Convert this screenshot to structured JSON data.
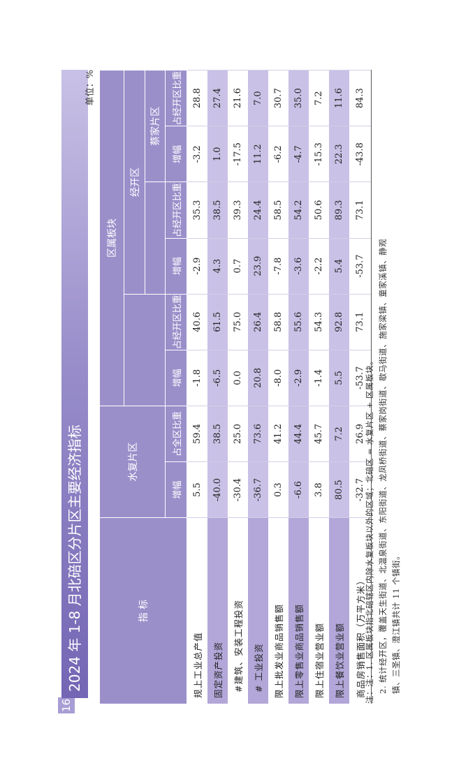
{
  "page_number": "16",
  "title": "2024 年 1-8 月北碚区分片区主要经济指标",
  "unit": "单位：%",
  "headers": {
    "indicator": "指 标",
    "shuifu": "水复片区",
    "qushu": "区属板块",
    "jingkai": "经开区",
    "caijia": "蔡家片区",
    "growth": "增幅",
    "share_district": "占全区比重",
    "share_zone": "占经开区比重"
  },
  "rows": [
    {
      "label": "规上工业总产值",
      "v": [
        "5.5",
        "59.4",
        "-1.8",
        "40.6",
        "-2.9",
        "35.3",
        "-3.2",
        "28.8"
      ]
    },
    {
      "label": "固定资产投资",
      "v": [
        "-40.0",
        "38.5",
        "-6.5",
        "61.5",
        "4.3",
        "38.5",
        "1.0",
        "27.4"
      ]
    },
    {
      "label": "#建筑、安装工程投资",
      "v": [
        "-30.4",
        "25.0",
        "0.0",
        "75.0",
        "0.7",
        "39.3",
        "-17.5",
        "21.6"
      ]
    },
    {
      "label": "# 工业投资",
      "v": [
        "-36.7",
        "73.6",
        "20.8",
        "26.4",
        "23.9",
        "24.4",
        "11.2",
        "7.0"
      ]
    },
    {
      "label": "限上批发业商品销售额",
      "v": [
        "0.3",
        "41.2",
        "-8.0",
        "58.8",
        "-7.8",
        "58.5",
        "-6.2",
        "30.7"
      ]
    },
    {
      "label": "限上零售业商品销售额",
      "v": [
        "-6.6",
        "44.4",
        "-2.9",
        "55.6",
        "-3.6",
        "54.2",
        "-4.7",
        "35.0"
      ]
    },
    {
      "label": "限上住宿业营业额",
      "v": [
        "3.8",
        "45.7",
        "-1.4",
        "54.3",
        "-2.2",
        "50.6",
        "-15.3",
        "7.2"
      ]
    },
    {
      "label": "限上餐饮业营业额",
      "v": [
        "80.5",
        "7.2",
        "5.5",
        "92.8",
        "5.4",
        "89.3",
        "22.3",
        "11.6"
      ]
    },
    {
      "label": "商品房销售面积（万平方米）",
      "v": [
        "-32.7",
        "26.9",
        "-53.7",
        "73.1",
        "-53.7",
        "73.1",
        "-43.8",
        "84.3"
      ]
    }
  ],
  "notes": {
    "line1": "注：注：1. 区属板块指北碚辖区内除水复板块以外的区域；北碚区 = 水复片区 + 区属板块。",
    "line2": "2. 统计经开区，覆盖天生街道、北温泉街道、东阳街道、龙凤桥街道、蔡家岗街道、歇马街道、施家梁镇、童家溪镇、静观",
    "line3": "镇、三圣镇、澄江镇共计 11 个镇街。"
  }
}
